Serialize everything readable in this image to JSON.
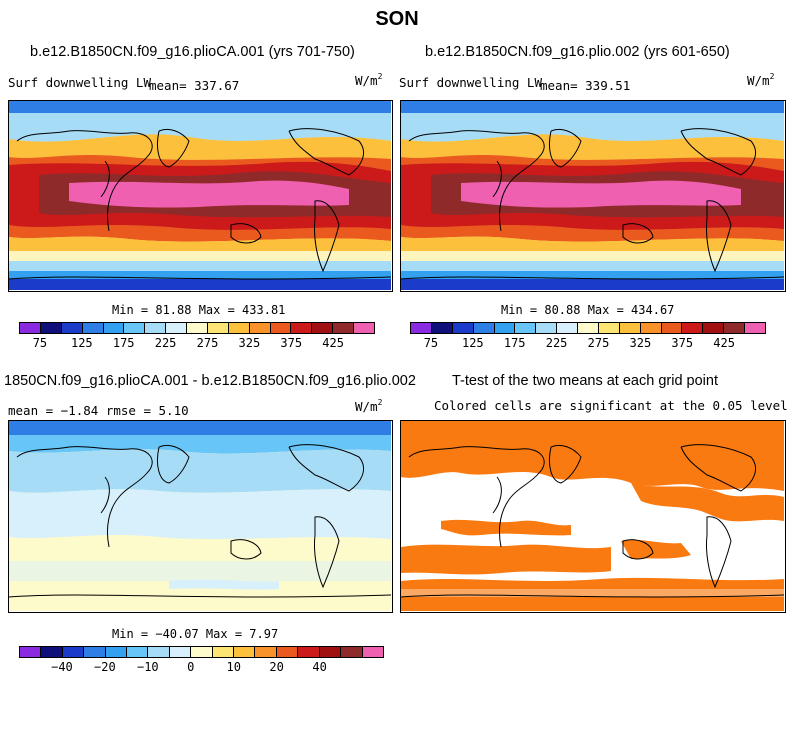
{
  "title": "SON",
  "panels": {
    "p1": {
      "title": "b.e12.B1850CN.f09_g16.plioCA.001 (yrs 701-750)",
      "variable": "Surf downwelling LW",
      "mean": "mean= 337.67",
      "units_base": "W/m",
      "units_exp": "2",
      "minmax": "Min =  81.88 Max = 433.81"
    },
    "p2": {
      "title": "b.e12.B1850CN.f09_g16.plio.002 (yrs 601-650)",
      "variable": "Surf downwelling LW",
      "mean": "mean= 339.51",
      "units_base": "W/m",
      "units_exp": "2",
      "minmax": "Min =  80.88 Max = 434.67"
    },
    "p3": {
      "title": "1850CN.f09_g16.plioCA.001 - b.e12.B1850CN.f09_g16.plio.002",
      "stats": "mean =  −1.84    rmse =   5.10",
      "units_base": "W/m",
      "units_exp": "2",
      "minmax": "Min = −40.07 Max =   7.97"
    },
    "p4": {
      "title": "T-test of the two means at each grid point",
      "subtitle": "Colored cells are significant at the 0.05 level"
    }
  },
  "colorbar_abs": {
    "colors": [
      "#8a2be2",
      "#10107a",
      "#1a3cc8",
      "#2f7ee6",
      "#33a0f0",
      "#67c5f7",
      "#a7dcf6",
      "#d7f0fc",
      "#fdfacc",
      "#fde575",
      "#fcc03c",
      "#f7932a",
      "#ea5a1f",
      "#cc1a1a",
      "#a01010",
      "#8f2a2a",
      "#f060b0"
    ],
    "ticks": [
      "75",
      "125",
      "175",
      "225",
      "275",
      "325",
      "375",
      "425"
    ]
  },
  "colorbar_diff": {
    "colors": [
      "#8a2be2",
      "#10107a",
      "#1a3cc8",
      "#2f7ee6",
      "#33a0f0",
      "#67c5f7",
      "#a7dcf6",
      "#d7f0fc",
      "#fdfacc",
      "#fde575",
      "#fcc03c",
      "#f7932a",
      "#ea5a1f",
      "#cc1a1a",
      "#a01010",
      "#8f2a2a",
      "#f060b0"
    ],
    "ticks": [
      "−40",
      "−20",
      "−10",
      "0",
      "10",
      "20",
      "40"
    ]
  },
  "colors": {
    "land_outline": "#000000",
    "significant": "#f97a10"
  }
}
